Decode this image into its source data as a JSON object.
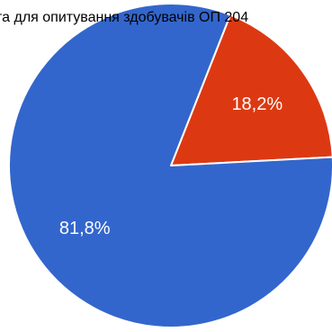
{
  "chart_data": {
    "type": "pie",
    "title": "та для опитування здобувачів ОП 204",
    "categories": [
      "",
      ""
    ],
    "values": [
      18.2,
      81.8
    ],
    "labels": [
      "18,2%",
      "81,8%"
    ],
    "colors": [
      "#dc3912",
      "#3366cc"
    ],
    "start_angle_deg": 21.5
  }
}
